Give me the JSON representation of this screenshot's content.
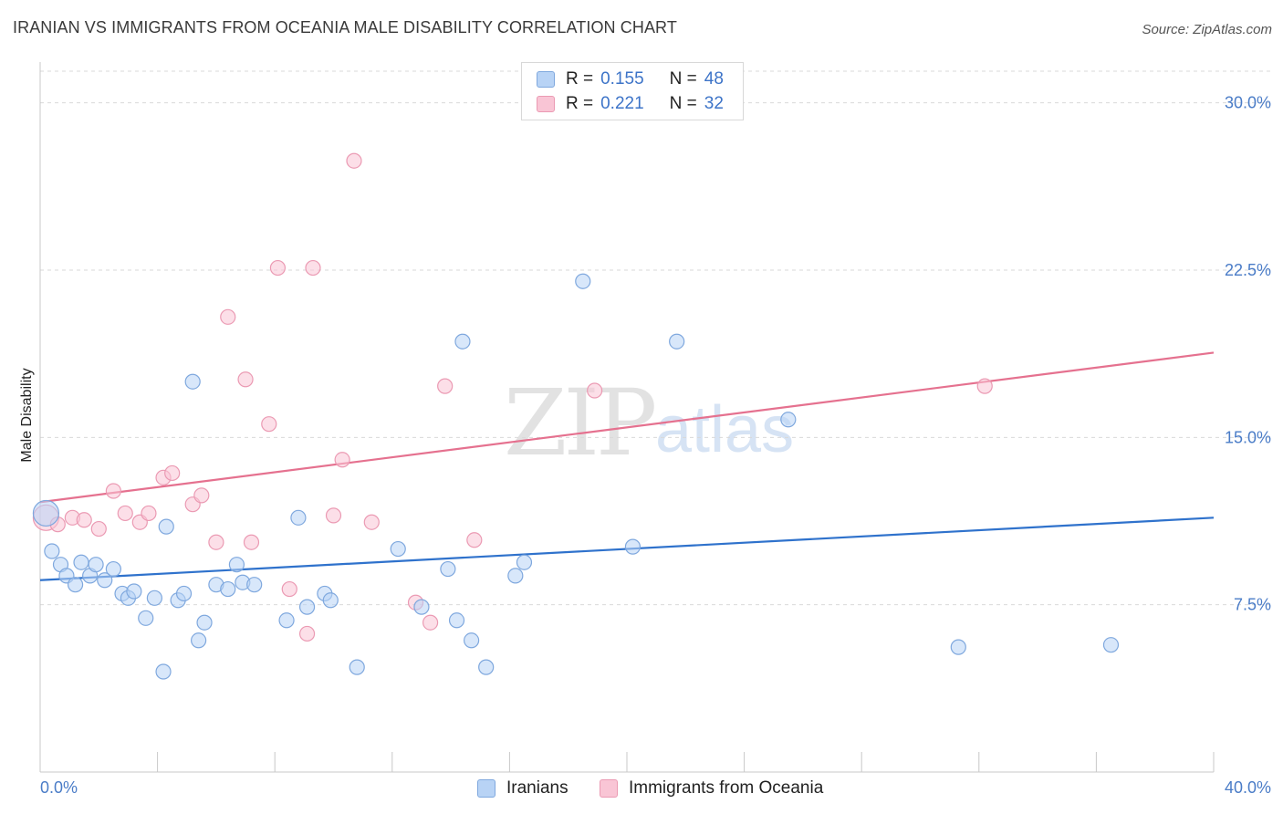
{
  "title": "IRANIAN VS IMMIGRANTS FROM OCEANIA MALE DISABILITY CORRELATION CHART",
  "source": "Source: ZipAtlas.com",
  "watermark": {
    "zip": "ZIP",
    "atlas": "atlas"
  },
  "legend": {
    "rows": [
      {
        "r_label": "R =",
        "r_value": "0.155",
        "n_label": "N =",
        "n_value": "48"
      },
      {
        "r_label": "R =",
        "r_value": "0.221",
        "n_label": "N =",
        "n_value": "32"
      }
    ]
  },
  "bottom_legend": {
    "series1": "Iranians",
    "series2": "Immigrants from Oceania"
  },
  "colors": {
    "blue_fill": "#b8d3f5",
    "blue_stroke": "#7fa8de",
    "blue_line": "#2f72cc",
    "pink_fill": "#f9c5d5",
    "pink_stroke": "#eb9ab3",
    "pink_line": "#e5718f",
    "grid": "#d9d9d9",
    "tick_label": "#4a7cc7"
  },
  "chart_data": {
    "type": "scatter",
    "title": "IRANIAN VS IMMIGRANTS FROM OCEANIA MALE DISABILITY CORRELATION CHART",
    "xlabel": "",
    "ylabel": "Male Disability",
    "xlim": [
      0,
      40
    ],
    "ylim": [
      0,
      31.5
    ],
    "x_tick_labels": [
      "0.0%",
      "40.0%"
    ],
    "y_ticks": [
      7.5,
      15.0,
      22.5,
      30.0
    ],
    "y_tick_labels": [
      "7.5%",
      "15.0%",
      "22.5%",
      "30.0%"
    ],
    "series": [
      {
        "name": "Iranians",
        "r": 0.155,
        "n": 48,
        "trend": [
          [
            0,
            8.6
          ],
          [
            40,
            11.4
          ]
        ],
        "points": [
          [
            0.2,
            11.6
          ],
          [
            0.4,
            9.9
          ],
          [
            0.7,
            9.3
          ],
          [
            0.9,
            8.8
          ],
          [
            1.2,
            8.4
          ],
          [
            1.4,
            9.4
          ],
          [
            1.7,
            8.8
          ],
          [
            1.9,
            9.3
          ],
          [
            2.2,
            8.6
          ],
          [
            2.5,
            9.1
          ],
          [
            2.8,
            8.0
          ],
          [
            3.0,
            7.8
          ],
          [
            3.2,
            8.1
          ],
          [
            3.6,
            6.9
          ],
          [
            3.9,
            7.8
          ],
          [
            4.2,
            4.5
          ],
          [
            4.3,
            11.0
          ],
          [
            4.7,
            7.7
          ],
          [
            4.9,
            8.0
          ],
          [
            5.2,
            17.5
          ],
          [
            5.4,
            5.9
          ],
          [
            5.6,
            6.7
          ],
          [
            6.0,
            8.4
          ],
          [
            6.4,
            8.2
          ],
          [
            6.7,
            9.3
          ],
          [
            6.9,
            8.5
          ],
          [
            7.3,
            8.4
          ],
          [
            8.4,
            6.8
          ],
          [
            8.8,
            11.4
          ],
          [
            9.1,
            7.4
          ],
          [
            9.7,
            8.0
          ],
          [
            9.9,
            7.7
          ],
          [
            10.8,
            4.7
          ],
          [
            12.2,
            10.0
          ],
          [
            13.0,
            7.4
          ],
          [
            13.9,
            9.1
          ],
          [
            14.2,
            6.8
          ],
          [
            14.4,
            19.3
          ],
          [
            14.7,
            5.9
          ],
          [
            15.2,
            4.7
          ],
          [
            16.2,
            8.8
          ],
          [
            16.5,
            9.4
          ],
          [
            18.5,
            22.0
          ],
          [
            20.2,
            10.1
          ],
          [
            21.7,
            19.3
          ],
          [
            25.5,
            15.8
          ],
          [
            31.3,
            5.6
          ],
          [
            36.5,
            5.7
          ]
        ]
      },
      {
        "name": "Immigrants from Oceania",
        "r": 0.221,
        "n": 32,
        "trend": [
          [
            0,
            12.1
          ],
          [
            40,
            18.8
          ]
        ],
        "points": [
          [
            0.2,
            11.4
          ],
          [
            0.6,
            11.1
          ],
          [
            1.1,
            11.4
          ],
          [
            1.5,
            11.3
          ],
          [
            2.0,
            10.9
          ],
          [
            2.5,
            12.6
          ],
          [
            2.9,
            11.6
          ],
          [
            3.4,
            11.2
          ],
          [
            3.7,
            11.6
          ],
          [
            4.2,
            13.2
          ],
          [
            4.5,
            13.4
          ],
          [
            5.2,
            12.0
          ],
          [
            5.5,
            12.4
          ],
          [
            6.0,
            10.3
          ],
          [
            6.4,
            20.4
          ],
          [
            7.0,
            17.6
          ],
          [
            7.2,
            10.3
          ],
          [
            7.8,
            15.6
          ],
          [
            8.1,
            22.6
          ],
          [
            8.5,
            8.2
          ],
          [
            9.1,
            6.2
          ],
          [
            9.3,
            22.6
          ],
          [
            10.0,
            11.5
          ],
          [
            10.3,
            14.0
          ],
          [
            10.7,
            27.4
          ],
          [
            11.3,
            11.2
          ],
          [
            12.8,
            7.6
          ],
          [
            13.3,
            6.7
          ],
          [
            13.8,
            17.3
          ],
          [
            14.8,
            10.4
          ],
          [
            18.9,
            17.1
          ],
          [
            32.2,
            17.3
          ]
        ]
      }
    ]
  }
}
